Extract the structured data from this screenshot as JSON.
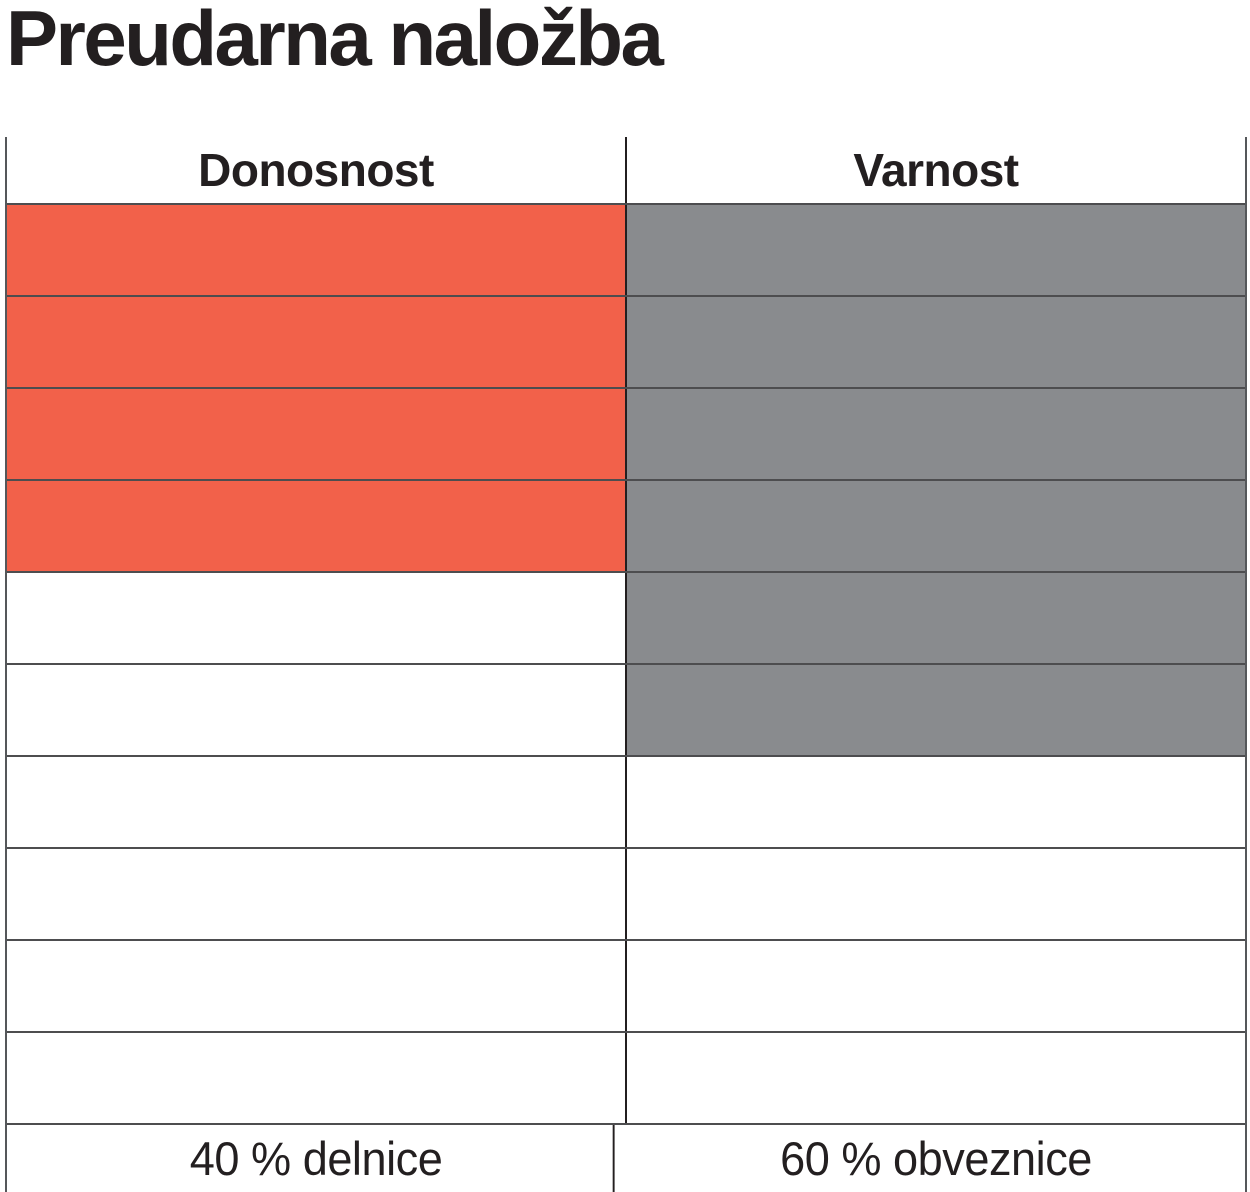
{
  "title": "Preudarna naložba",
  "colors": {
    "stocks_fill": "#F2614A",
    "bonds_fill": "#898B8E",
    "grid_line": "#4d4d4f",
    "center_divider": "#231f20",
    "outer_border": "#55575a",
    "text": "#231f20",
    "background": "#ffffff"
  },
  "chart_data": {
    "type": "table",
    "subtype": "waffle-allocation",
    "title": "Preudarna naložba",
    "total_rows": 10,
    "row_unit_pct": 10,
    "legend_position": "bottom",
    "grid": true,
    "columns": [
      {
        "header": "Donosnost",
        "asset": "delnice",
        "label": "40 % delnice",
        "value_pct": 40,
        "filled_rows": 4,
        "fill_color": "#F2614A"
      },
      {
        "header": "Varnost",
        "asset": "obveznice",
        "label": "60 % obveznice",
        "value_pct": 60,
        "filled_rows": 6,
        "fill_color": "#898B8E"
      }
    ]
  }
}
